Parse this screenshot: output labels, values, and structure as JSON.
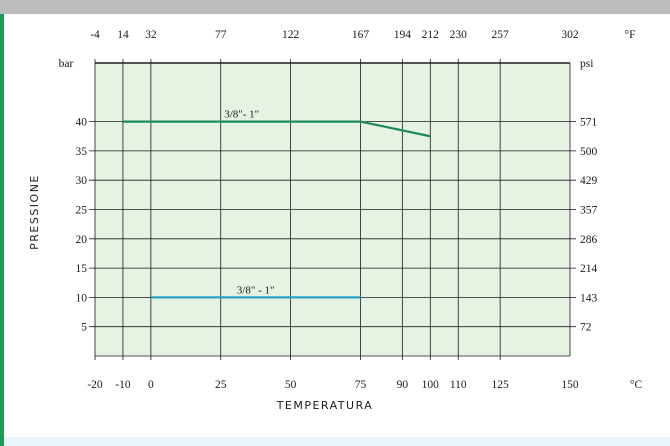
{
  "chart_data": {
    "type": "line",
    "xlabel": "TEMPERATURA",
    "ylabel": "PRESSIONE",
    "x_unit_bottom": "°C",
    "x_unit_top": "°F",
    "y_unit_left": "bar",
    "y_unit_right": "psi",
    "xlim": [
      -20,
      150
    ],
    "ylim": [
      0,
      50
    ],
    "x_ticks_c": [
      "-20",
      "-10",
      "0",
      "25",
      "50",
      "75",
      "90",
      "100",
      "110",
      "125",
      "150"
    ],
    "x_ticks_f": [
      "-4",
      "14",
      "32",
      "77",
      "122",
      "167",
      "194",
      "212",
      "230",
      "257",
      "302"
    ],
    "y_ticks_bar": [
      "5",
      "10",
      "15",
      "20",
      "25",
      "30",
      "35",
      "40"
    ],
    "y_ticks_psi": [
      "72",
      "143",
      "214",
      "286",
      "357",
      "429",
      "500",
      "571"
    ],
    "grid": true,
    "colors": {
      "plot_background": "#e6f3e3",
      "grid": "#1a1a1a",
      "series_top": "#1d8a5e",
      "series_bottom": "#2aa0c8"
    },
    "series": [
      {
        "name": "3/8\"- 1\"",
        "x": [
          -10,
          75,
          100
        ],
        "y": [
          40,
          40,
          37.5
        ],
        "color": "#1d8a5e"
      },
      {
        "name": "3/8\" - 1\"",
        "x": [
          0,
          75
        ],
        "y": [
          10,
          10
        ],
        "color": "#2aa0c8"
      }
    ]
  }
}
